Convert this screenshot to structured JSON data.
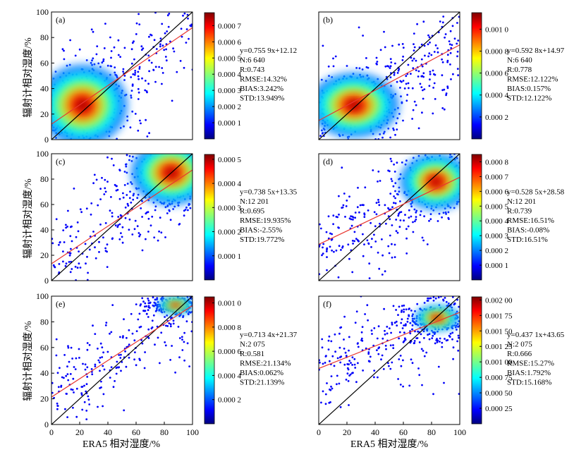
{
  "figure": {
    "ylabel": "辐射计相对湿度/%",
    "xlabel": "ERA5 相对湿度/%",
    "colors": {
      "fit_line": "#e8362f",
      "identity_line": "#000000",
      "axes": "#000000"
    }
  },
  "chart_data": [
    {
      "panel": "(a)",
      "type": "scatter",
      "xlim": [
        0,
        100
      ],
      "ylim": [
        0,
        100
      ],
      "x_ticks": [],
      "y_ticks": [
        "0",
        "20",
        "40",
        "60",
        "80",
        "100"
      ],
      "colorbar_ticks": [
        "0.000 1",
        "0.000 2",
        "0.000 3",
        "0.000 4",
        "0.000 5",
        "0.000 6",
        "0.000 7"
      ],
      "colorbar_range": [
        0,
        0.00078
      ],
      "stats": [
        "y=0.755 9x+12.12",
        "N:6 640",
        "R:0.743",
        "RMSE:14.32%",
        "BIAS:3.242%",
        "STD:13.949%"
      ],
      "fit": {
        "slope": 0.7559,
        "intercept": 12.12
      },
      "density_center": [
        22,
        27
      ],
      "density_spread": [
        10,
        10
      ]
    },
    {
      "panel": "(b)",
      "type": "scatter",
      "xlim": [
        0,
        100
      ],
      "ylim": [
        0,
        100
      ],
      "x_ticks": [],
      "y_ticks": [],
      "colorbar_ticks": [
        "0.000 2",
        "0.000 4",
        "0.000 6",
        "0.000 8",
        "0.001 0"
      ],
      "colorbar_range": [
        0,
        0.00115
      ],
      "stats": [
        "y=0.592 8x+14.97",
        "N:6 640",
        "R:0.778",
        "RMSE:12.122%",
        "BIAS:0.157%",
        "STD:12.122%"
      ],
      "fit": {
        "slope": 0.5928,
        "intercept": 14.97
      },
      "density_center": [
        25,
        27
      ],
      "density_spread": [
        10,
        8
      ]
    },
    {
      "panel": "(c)",
      "type": "scatter",
      "xlim": [
        0,
        100
      ],
      "ylim": [
        0,
        100
      ],
      "x_ticks": [],
      "y_ticks": [
        "0",
        "20",
        "40",
        "60",
        "80",
        "100"
      ],
      "colorbar_ticks": [
        "0.000 1",
        "0.000 2",
        "0.000 3",
        "0.000 4",
        "0.000 5"
      ],
      "colorbar_range": [
        0,
        0.00052
      ],
      "stats": [
        "y=0.738 5x+13.35",
        "N:12 201",
        "R:0.695",
        "RMSE:19.935%",
        "BIAS:-2.55%",
        "STD:19.772%"
      ],
      "fit": {
        "slope": 0.7385,
        "intercept": 13.35
      },
      "density_center": [
        85,
        85
      ],
      "density_spread": [
        9,
        8
      ]
    },
    {
      "panel": "(d)",
      "type": "scatter",
      "xlim": [
        0,
        100
      ],
      "ylim": [
        0,
        100
      ],
      "x_ticks": [],
      "y_ticks": [],
      "colorbar_ticks": [
        "0.000 1",
        "0.000 2",
        "0.000 3",
        "0.000 4",
        "0.000 5",
        "0.000 6",
        "0.000 7",
        "0.000 8"
      ],
      "colorbar_range": [
        0,
        0.00085
      ],
      "stats": [
        "y=0.528 5x+28.58",
        "N:12 201",
        "R:0.739",
        "RMSE:16.51%",
        "BIAS:-0.08%",
        "STD:16.51%"
      ],
      "fit": {
        "slope": 0.5285,
        "intercept": 28.58
      },
      "density_center": [
        83,
        78
      ],
      "density_spread": [
        8,
        7
      ]
    },
    {
      "panel": "(e)",
      "type": "scatter",
      "xlim": [
        0,
        100
      ],
      "ylim": [
        0,
        100
      ],
      "x_ticks": [
        "0",
        "20",
        "40",
        "60",
        "80",
        "100"
      ],
      "y_ticks": [
        "0",
        "20",
        "40",
        "60",
        "80",
        "100"
      ],
      "colorbar_ticks": [
        "0.000 2",
        "0.000 4",
        "0.000 6",
        "0.000 8",
        "0.001 0"
      ],
      "colorbar_range": [
        0,
        0.00105
      ],
      "stats": [
        "y=0.713 4x+21.37",
        "N:2 075",
        "R:0.581",
        "RMSE:21.134%",
        "BIAS:0.062%",
        "STD:21.139%"
      ],
      "fit": {
        "slope": 0.7134,
        "intercept": 21.37
      },
      "density_center": [
        88,
        93
      ],
      "density_spread": [
        4,
        2
      ]
    },
    {
      "panel": "(f)",
      "type": "scatter",
      "xlim": [
        0,
        100
      ],
      "ylim": [
        0,
        100
      ],
      "x_ticks": [
        "0",
        "20",
        "40",
        "60",
        "80",
        "100"
      ],
      "y_ticks": [],
      "colorbar_ticks": [
        "0.000 25",
        "0.000 50",
        "0.000 75",
        "0.001 00",
        "0.001 25",
        "0.001 50",
        "0.001 75",
        "0.002 00"
      ],
      "colorbar_range": [
        0,
        0.00205
      ],
      "stats": [
        "y=0.437 1x+43.65",
        "N:2 075",
        "R:0.666",
        "RMSE:15.27%",
        "BIAS:1.792%",
        "STD:15.168%"
      ],
      "fit": {
        "slope": 0.4371,
        "intercept": 43.65
      },
      "density_center": [
        84,
        83
      ],
      "density_spread": [
        5,
        3
      ]
    }
  ]
}
